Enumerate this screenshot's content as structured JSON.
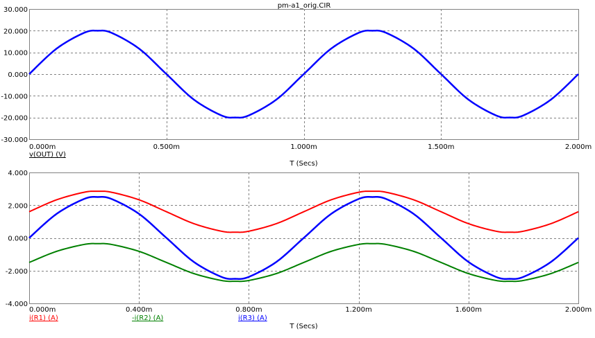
{
  "window": {
    "title": "pm-a1_orig.CIR"
  },
  "chart_data": [
    {
      "type": "line",
      "xlabel": "T (Secs)",
      "ylabel": "",
      "xlim": [
        0,
        0.002
      ],
      "ylim": [
        -30,
        30
      ],
      "grid": true,
      "xticks": [
        0,
        0.0005,
        0.001,
        0.0015,
        0.002
      ],
      "xtick_labels": [
        "0.000m",
        "0.500m",
        "1.000m",
        "1.500m",
        "2.000m"
      ],
      "yticks": [
        30,
        20,
        10,
        0,
        -10,
        -20,
        -30
      ],
      "ytick_labels": [
        "30.000",
        "20.000",
        "10.000",
        "0.000",
        "-10.000",
        "-20.000",
        "-30.000"
      ],
      "series": [
        {
          "name": "v(OUT) (V)",
          "color": "#0000ff",
          "x": [
            0,
            0.0001,
            0.0002,
            0.00025,
            0.0003,
            0.0004,
            0.0005,
            0.0006,
            0.0007,
            0.00075,
            0.0008,
            0.0009,
            0.001,
            0.0011,
            0.0012,
            0.00125,
            0.0013,
            0.0014,
            0.0015,
            0.0016,
            0.0017,
            0.00175,
            0.0018,
            0.0019,
            0.002
          ],
          "y": [
            0,
            11.76,
            19.02,
            20,
            19.02,
            11.76,
            0,
            -11.76,
            -19.02,
            -20,
            -19.02,
            -11.76,
            0,
            11.76,
            19.02,
            20,
            19.02,
            11.76,
            0,
            -11.76,
            -19.02,
            -20,
            -19.02,
            -11.76,
            0
          ]
        }
      ]
    },
    {
      "type": "line",
      "xlabel": "T (Secs)",
      "ylabel": "",
      "xlim": [
        0,
        0.002
      ],
      "ylim": [
        -4,
        4
      ],
      "grid": true,
      "xticks": [
        0,
        0.0004,
        0.0008,
        0.0012,
        0.0016,
        0.002
      ],
      "xtick_labels": [
        "0.000m",
        "0.400m",
        "0.800m",
        "1.200m",
        "1.600m",
        "2.000m"
      ],
      "yticks": [
        4,
        2,
        0,
        -2,
        -4
      ],
      "ytick_labels": [
        "4.000",
        "2.000",
        "0.000",
        "-2.000",
        "-4.000"
      ],
      "series": [
        {
          "name": "i(R1) (A)",
          "color": "#ff0000",
          "x": [
            0,
            0.0001,
            0.0002,
            0.00025,
            0.0003,
            0.0004,
            0.0005,
            0.0006,
            0.0007,
            0.00075,
            0.0008,
            0.0009,
            0.001,
            0.0011,
            0.0012,
            0.00125,
            0.0013,
            0.0014,
            0.0015,
            0.0016,
            0.0017,
            0.00175,
            0.0018,
            0.0019,
            0.002
          ],
          "y": [
            1.6,
            2.33,
            2.79,
            2.85,
            2.79,
            2.33,
            1.6,
            0.87,
            0.41,
            0.35,
            0.41,
            0.87,
            1.6,
            2.33,
            2.79,
            2.85,
            2.79,
            2.33,
            1.6,
            0.87,
            0.41,
            0.35,
            0.41,
            0.87,
            1.6
          ]
        },
        {
          "name": "-i(R2) (A)",
          "color": "#008000",
          "x": [
            0,
            0.0001,
            0.0002,
            0.00025,
            0.0003,
            0.0004,
            0.0005,
            0.0006,
            0.0007,
            0.00075,
            0.0008,
            0.0009,
            0.001,
            0.0011,
            0.0012,
            0.00125,
            0.0013,
            0.0014,
            0.0015,
            0.0016,
            0.0017,
            0.00175,
            0.0018,
            0.0019,
            0.002
          ],
          "y": [
            -1.5,
            -0.82,
            -0.4,
            -0.35,
            -0.4,
            -0.82,
            -1.5,
            -2.18,
            -2.6,
            -2.65,
            -2.6,
            -2.18,
            -1.5,
            -0.82,
            -0.4,
            -0.35,
            -0.4,
            -0.82,
            -1.5,
            -2.18,
            -2.6,
            -2.65,
            -2.6,
            -2.18,
            -1.5
          ]
        },
        {
          "name": "i(R3) (A)",
          "color": "#0000ff",
          "x": [
            0,
            0.0001,
            0.0002,
            0.00025,
            0.0003,
            0.0004,
            0.0005,
            0.0006,
            0.0007,
            0.00075,
            0.0008,
            0.0009,
            0.001,
            0.0011,
            0.0012,
            0.00125,
            0.0013,
            0.0014,
            0.0015,
            0.0016,
            0.0017,
            0.00175,
            0.0018,
            0.0019,
            0.002
          ],
          "y": [
            0,
            1.47,
            2.38,
            2.5,
            2.38,
            1.47,
            0,
            -1.47,
            -2.38,
            -2.5,
            -2.38,
            -1.47,
            0,
            1.47,
            2.38,
            2.5,
            2.38,
            1.47,
            0,
            -1.47,
            -2.38,
            -2.5,
            -2.38,
            -1.47,
            0
          ]
        }
      ]
    }
  ]
}
